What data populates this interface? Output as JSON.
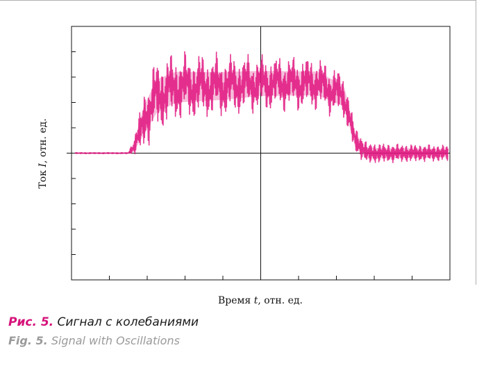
{
  "captions": {
    "ru_label": "Рис. 5.",
    "ru_text": " Сигнал с колебаниями",
    "en_label": "Fig. 5.",
    "en_text": " Signal with Oscillations"
  },
  "chart_data": {
    "type": "line",
    "title": "",
    "xlabel_prefix": "Время ",
    "xlabel_var": "t",
    "xlabel_suffix": ", отн. ед.",
    "ylabel_prefix": "Ток ",
    "ylabel_var": "I",
    "ylabel_suffix": ", отн. ед.",
    "xlim": [
      -1,
      1
    ],
    "ylim": [
      -1,
      1
    ],
    "x_ticks": 10,
    "y_ticks": 10,
    "grid": false,
    "series_color": "#e0157f",
    "series": [
      {
        "envelope": [
          {
            "x": -1.0,
            "baseline": 0.0,
            "amp": 0.004
          },
          {
            "x": -0.7,
            "baseline": 0.0,
            "amp": 0.004
          },
          {
            "x": -0.67,
            "baseline": 0.05,
            "amp": 0.06
          },
          {
            "x": -0.62,
            "baseline": 0.25,
            "amp": 0.2
          },
          {
            "x": -0.55,
            "baseline": 0.45,
            "amp": 0.24
          },
          {
            "x": -0.45,
            "baseline": 0.52,
            "amp": 0.22
          },
          {
            "x": -0.2,
            "baseline": 0.53,
            "amp": 0.2
          },
          {
            "x": 0.0,
            "baseline": 0.55,
            "amp": 0.18
          },
          {
            "x": 0.3,
            "baseline": 0.55,
            "amp": 0.17
          },
          {
            "x": 0.44,
            "baseline": 0.45,
            "amp": 0.15
          },
          {
            "x": 0.5,
            "baseline": 0.1,
            "amp": 0.1
          },
          {
            "x": 0.56,
            "baseline": 0.0,
            "amp": 0.08
          },
          {
            "x": 0.7,
            "baseline": 0.0,
            "amp": 0.07
          },
          {
            "x": 1.0,
            "baseline": 0.0,
            "amp": 0.06
          }
        ]
      }
    ]
  }
}
